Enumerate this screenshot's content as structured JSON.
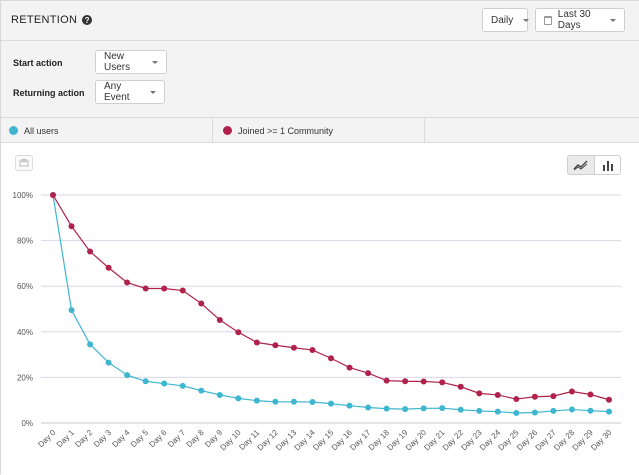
{
  "header": {
    "title": "RETENTION",
    "interval_select": "Daily",
    "range_select": "Last 30 Days"
  },
  "controls": {
    "start_action_label": "Start action",
    "start_action_value": "New Users",
    "returning_action_label": "Returning action",
    "returning_action_value": "Any Event"
  },
  "legend": [
    {
      "label": "All users",
      "color": "#3fb6cf"
    },
    {
      "label": "Joined >= 1 Community",
      "color": "#b0224c"
    }
  ],
  "icons": {
    "help": "help-circle-icon",
    "calendar": "calendar-icon",
    "save": "save-icon",
    "line_chart": "line-chart-icon",
    "bar_chart": "bar-chart-icon"
  },
  "chart_data": {
    "type": "line",
    "x": [
      "Day 0",
      "Day 1",
      "Day 2",
      "Day 3",
      "Day 4",
      "Day 5",
      "Day 6",
      "Day 7",
      "Day 8",
      "Day 9",
      "Day 10",
      "Day 11",
      "Day 12",
      "Day 13",
      "Day 14",
      "Day 15",
      "Day 16",
      "Day 17",
      "Day 18",
      "Day 19",
      "Day 20",
      "Day 21",
      "Day 22",
      "Day 23",
      "Day 24",
      "Day 25",
      "Day 26",
      "Day 27",
      "Day 28",
      "Day 29",
      "Day 30"
    ],
    "y_ticks": [
      "0%",
      "20%",
      "40%",
      "60%",
      "80%",
      "100%"
    ],
    "ylim": [
      0,
      100
    ],
    "grid": true,
    "series": [
      {
        "name": "All users",
        "color": "#3fb6cf",
        "values": [
          100,
          49.5,
          34.5,
          26.5,
          21,
          18.3,
          17.3,
          16.3,
          14.2,
          12.3,
          10.8,
          9.8,
          9.3,
          9.3,
          9.2,
          8.5,
          7.6,
          6.8,
          6.3,
          6.1,
          6.4,
          6.5,
          5.8,
          5.3,
          5.0,
          4.4,
          4.6,
          5.3,
          5.9,
          5.4,
          5.0
        ]
      },
      {
        "name": "Joined >= 1 Community",
        "color": "#b0224c",
        "values": [
          100,
          86.3,
          75.2,
          68.1,
          61.6,
          59.0,
          59.0,
          58.1,
          52.4,
          45.2,
          39.8,
          35.3,
          34.1,
          33.0,
          32.0,
          28.4,
          24.3,
          21.9,
          18.6,
          18.3,
          18.2,
          17.8,
          15.9,
          13.0,
          12.3,
          10.5,
          11.5,
          11.8,
          13.8,
          12.5,
          10.2
        ]
      }
    ]
  }
}
